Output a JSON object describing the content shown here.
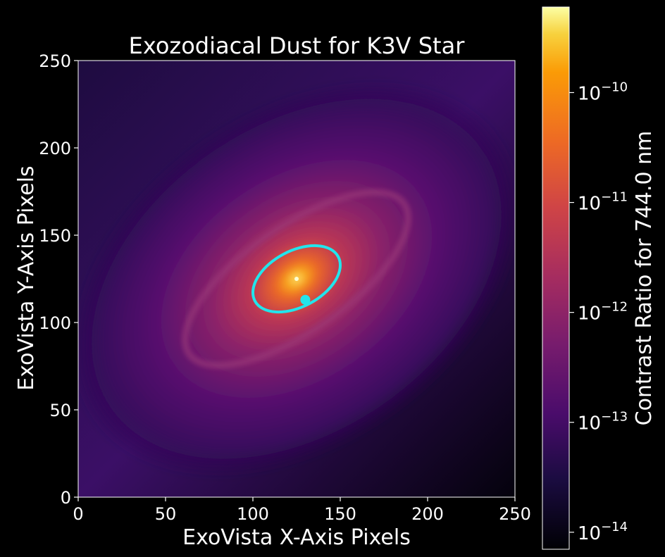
{
  "chart_data": {
    "type": "heatmap",
    "title": "Exozodiacal Dust for K3V Star",
    "xlabel": "ExoVista X-Axis Pixels",
    "ylabel": "ExoVista Y-Axis Pixels",
    "xlim": [
      0,
      250
    ],
    "ylim": [
      0,
      250
    ],
    "xticks": [
      0,
      50,
      100,
      150,
      200,
      250
    ],
    "yticks": [
      0,
      50,
      100,
      150,
      200,
      250
    ],
    "colormap": "inferno",
    "colorbar": {
      "label": "Contrast Ratio for 744.0 nm",
      "scale": "log",
      "range": [
        7e-15,
        6e-10
      ],
      "ticks": [
        {
          "value": 1e-14,
          "label": "10",
          "exp": "−14"
        },
        {
          "value": 1e-13,
          "label": "10",
          "exp": "−13"
        },
        {
          "value": 1e-12,
          "label": "10",
          "exp": "−12"
        },
        {
          "value": 1e-11,
          "label": "10",
          "exp": "−11"
        },
        {
          "value": 1e-10,
          "label": "10",
          "exp": "−10"
        }
      ]
    },
    "star": {
      "x": 125,
      "y": 125
    },
    "dust_ring": {
      "center": [
        125,
        125
      ],
      "semi_major": 75,
      "semi_minor": 30,
      "angle_deg": 35
    },
    "planet_orbit": {
      "center": [
        125,
        125
      ],
      "semi_major": 27,
      "semi_minor": 16,
      "angle_deg": 28,
      "color": "#22e5ec"
    },
    "planet": {
      "x": 130,
      "y": 113,
      "color": "#22e5ec"
    }
  }
}
